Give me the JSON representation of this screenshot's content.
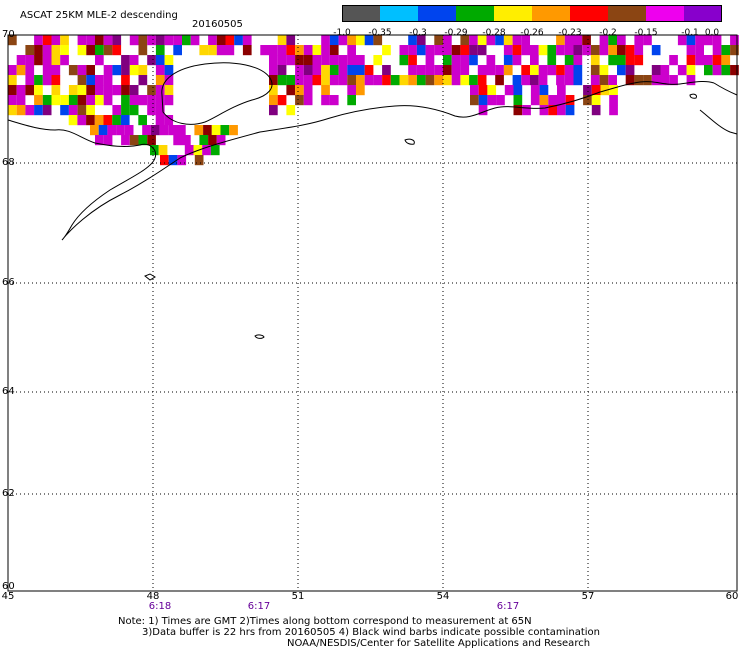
{
  "title": "ASCAT 25KM MLE-2 descending",
  "date": "20160505",
  "colorbar": {
    "labels": [
      "-1.0",
      "-0.35",
      "-0.3",
      "-0.29",
      "-0.28",
      "-0.26",
      "-0.23",
      "-0.2",
      "-0.15",
      "-0.1",
      "0.0"
    ],
    "colors": [
      "#555555",
      "#00bfff",
      "#0044ee",
      "#00aa00",
      "#ffee00",
      "#ff9900",
      "#ff0000",
      "#8b4513",
      "#ee00ee",
      "#8800cc"
    ]
  },
  "axes": {
    "lat_labels": [
      "70",
      "68",
      "66",
      "64",
      "62",
      "60"
    ],
    "lon_labels": [
      "45",
      "48",
      "51",
      "54",
      "57",
      "60"
    ],
    "time_labels": [
      "6:18",
      "6:17",
      "6:17"
    ]
  },
  "notes": {
    "line1": "Note: 1) Times are GMT 2)Times along bottom correspond to measurement at 65N",
    "line2": "3)Data buffer is 22 hrs from 20160505 4) Black wind barbs indicate possible contamination",
    "line3": "NOAA/NESDIS/Center for Satellite Applications and Research"
  }
}
